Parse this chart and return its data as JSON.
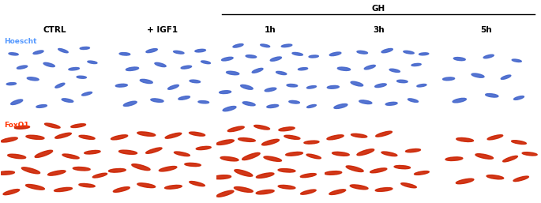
{
  "columns": [
    "CTRL",
    "+ IGF1",
    "1h",
    "3h",
    "5h"
  ],
  "gh_label": "GH",
  "gh_cols": [
    2,
    3,
    4
  ],
  "row_labels": [
    "Hoescht",
    "FoxO1"
  ],
  "row_label_colors": [
    "#5599ff",
    "#ff3300"
  ],
  "bg_color": "#000000",
  "outer_bg": "#ffffff",
  "header_fontsize": 7.5,
  "blue_cells": {
    "0": [
      [
        0.15,
        0.2,
        0.12,
        0.04,
        25
      ],
      [
        0.38,
        0.15,
        0.1,
        0.032,
        10
      ],
      [
        0.62,
        0.22,
        0.11,
        0.035,
        -15
      ],
      [
        0.8,
        0.3,
        0.1,
        0.03,
        20
      ],
      [
        0.1,
        0.42,
        0.09,
        0.028,
        5
      ],
      [
        0.3,
        0.48,
        0.11,
        0.035,
        -10
      ],
      [
        0.55,
        0.4,
        0.1,
        0.032,
        30
      ],
      [
        0.75,
        0.5,
        0.09,
        0.028,
        -5
      ],
      [
        0.2,
        0.62,
        0.1,
        0.032,
        15
      ],
      [
        0.45,
        0.65,
        0.11,
        0.036,
        -20
      ],
      [
        0.68,
        0.6,
        0.1,
        0.03,
        8
      ],
      [
        0.85,
        0.68,
        0.09,
        0.028,
        -12
      ],
      [
        0.12,
        0.78,
        0.09,
        0.028,
        -8
      ],
      [
        0.35,
        0.8,
        0.1,
        0.032,
        18
      ],
      [
        0.58,
        0.82,
        0.1,
        0.03,
        -25
      ],
      [
        0.78,
        0.85,
        0.09,
        0.028,
        5
      ]
    ],
    "1": [
      [
        0.2,
        0.18,
        0.13,
        0.042,
        20
      ],
      [
        0.45,
        0.22,
        0.12,
        0.038,
        -10
      ],
      [
        0.7,
        0.25,
        0.11,
        0.035,
        15
      ],
      [
        0.88,
        0.2,
        0.1,
        0.03,
        -5
      ],
      [
        0.12,
        0.4,
        0.11,
        0.035,
        5
      ],
      [
        0.35,
        0.45,
        0.12,
        0.04,
        -15
      ],
      [
        0.6,
        0.38,
        0.11,
        0.035,
        25
      ],
      [
        0.8,
        0.45,
        0.1,
        0.032,
        -8
      ],
      [
        0.22,
        0.6,
        0.12,
        0.038,
        10
      ],
      [
        0.48,
        0.65,
        0.11,
        0.036,
        -20
      ],
      [
        0.72,
        0.62,
        0.1,
        0.032,
        12
      ],
      [
        0.9,
        0.68,
        0.09,
        0.028,
        -15
      ],
      [
        0.15,
        0.78,
        0.1,
        0.032,
        -5
      ],
      [
        0.4,
        0.82,
        0.11,
        0.035,
        18
      ],
      [
        0.65,
        0.8,
        0.1,
        0.03,
        -12
      ],
      [
        0.85,
        0.82,
        0.1,
        0.032,
        8
      ]
    ],
    "2": [
      [
        0.12,
        0.12,
        0.13,
        0.042,
        20
      ],
      [
        0.3,
        0.18,
        0.12,
        0.038,
        -15
      ],
      [
        0.52,
        0.15,
        0.11,
        0.035,
        10
      ],
      [
        0.72,
        0.2,
        0.1,
        0.032,
        -8
      ],
      [
        0.88,
        0.15,
        0.09,
        0.028,
        18
      ],
      [
        0.08,
        0.32,
        0.11,
        0.035,
        5
      ],
      [
        0.28,
        0.38,
        0.12,
        0.04,
        -20
      ],
      [
        0.5,
        0.35,
        0.11,
        0.036,
        15
      ],
      [
        0.7,
        0.4,
        0.1,
        0.032,
        -5
      ],
      [
        0.88,
        0.38,
        0.09,
        0.028,
        12
      ],
      [
        0.15,
        0.55,
        0.12,
        0.038,
        -10
      ],
      [
        0.38,
        0.58,
        0.11,
        0.035,
        25
      ],
      [
        0.6,
        0.55,
        0.1,
        0.032,
        -15
      ],
      [
        0.8,
        0.6,
        0.09,
        0.028,
        8
      ],
      [
        0.1,
        0.72,
        0.11,
        0.035,
        15
      ],
      [
        0.32,
        0.75,
        0.1,
        0.032,
        -8
      ],
      [
        0.55,
        0.72,
        0.11,
        0.036,
        20
      ],
      [
        0.75,
        0.78,
        0.1,
        0.03,
        -12
      ],
      [
        0.9,
        0.75,
        0.09,
        0.028,
        5
      ],
      [
        0.2,
        0.88,
        0.1,
        0.032,
        18
      ],
      [
        0.45,
        0.88,
        0.09,
        0.028,
        -15
      ],
      [
        0.65,
        0.88,
        0.1,
        0.03,
        10
      ]
    ],
    "3": [
      [
        0.15,
        0.15,
        0.13,
        0.042,
        18
      ],
      [
        0.38,
        0.2,
        0.12,
        0.038,
        -12
      ],
      [
        0.62,
        0.18,
        0.11,
        0.035,
        8
      ],
      [
        0.82,
        0.22,
        0.1,
        0.032,
        -18
      ],
      [
        0.08,
        0.38,
        0.11,
        0.035,
        5
      ],
      [
        0.3,
        0.42,
        0.12,
        0.04,
        -20
      ],
      [
        0.52,
        0.4,
        0.11,
        0.036,
        15
      ],
      [
        0.72,
        0.45,
        0.1,
        0.032,
        -5
      ],
      [
        0.9,
        0.4,
        0.09,
        0.028,
        12
      ],
      [
        0.18,
        0.6,
        0.12,
        0.038,
        -8
      ],
      [
        0.42,
        0.62,
        0.11,
        0.035,
        22
      ],
      [
        0.65,
        0.58,
        0.1,
        0.032,
        -15
      ],
      [
        0.85,
        0.65,
        0.09,
        0.028,
        8
      ],
      [
        0.1,
        0.78,
        0.11,
        0.035,
        15
      ],
      [
        0.35,
        0.8,
        0.1,
        0.032,
        -10
      ],
      [
        0.58,
        0.82,
        0.11,
        0.036,
        20
      ],
      [
        0.78,
        0.8,
        0.1,
        0.03,
        -12
      ],
      [
        0.92,
        0.78,
        0.09,
        0.028,
        5
      ]
    ],
    "4": [
      [
        0.25,
        0.22,
        0.13,
        0.042,
        15
      ],
      [
        0.55,
        0.28,
        0.12,
        0.038,
        -10
      ],
      [
        0.8,
        0.25,
        0.1,
        0.032,
        20
      ],
      [
        0.15,
        0.48,
        0.11,
        0.035,
        5
      ],
      [
        0.42,
        0.52,
        0.12,
        0.04,
        -15
      ],
      [
        0.68,
        0.5,
        0.1,
        0.032,
        25
      ],
      [
        0.25,
        0.72,
        0.11,
        0.036,
        -8
      ],
      [
        0.52,
        0.75,
        0.1,
        0.032,
        18
      ],
      [
        0.78,
        0.7,
        0.09,
        0.028,
        -12
      ]
    ]
  },
  "red_cells": {
    "0": [
      [
        0.1,
        0.12,
        0.16,
        0.042,
        20
      ],
      [
        0.32,
        0.18,
        0.18,
        0.045,
        -15
      ],
      [
        0.58,
        0.15,
        0.17,
        0.04,
        10
      ],
      [
        0.8,
        0.2,
        0.15,
        0.038,
        -8
      ],
      [
        0.05,
        0.35,
        0.16,
        0.042,
        5
      ],
      [
        0.28,
        0.38,
        0.18,
        0.048,
        -20
      ],
      [
        0.52,
        0.35,
        0.17,
        0.044,
        15
      ],
      [
        0.75,
        0.4,
        0.16,
        0.04,
        -5
      ],
      [
        0.92,
        0.32,
        0.14,
        0.036,
        18
      ],
      [
        0.15,
        0.55,
        0.17,
        0.045,
        -10
      ],
      [
        0.4,
        0.58,
        0.18,
        0.048,
        25
      ],
      [
        0.65,
        0.55,
        0.16,
        0.04,
        -15
      ],
      [
        0.85,
        0.6,
        0.15,
        0.038,
        8
      ],
      [
        0.08,
        0.75,
        0.16,
        0.042,
        15
      ],
      [
        0.32,
        0.78,
        0.17,
        0.044,
        -8
      ],
      [
        0.58,
        0.8,
        0.16,
        0.04,
        20
      ],
      [
        0.8,
        0.78,
        0.15,
        0.038,
        -12
      ],
      [
        0.2,
        0.9,
        0.14,
        0.036,
        5
      ],
      [
        0.48,
        0.92,
        0.15,
        0.038,
        -18
      ],
      [
        0.72,
        0.92,
        0.14,
        0.036,
        12
      ]
    ],
    "1": [
      [
        0.12,
        0.15,
        0.16,
        0.042,
        18
      ],
      [
        0.35,
        0.2,
        0.17,
        0.044,
        -12
      ],
      [
        0.6,
        0.18,
        0.16,
        0.04,
        8
      ],
      [
        0.82,
        0.22,
        0.15,
        0.038,
        -18
      ],
      [
        0.08,
        0.38,
        0.16,
        0.042,
        5
      ],
      [
        0.3,
        0.42,
        0.18,
        0.048,
        -20
      ],
      [
        0.55,
        0.4,
        0.17,
        0.044,
        15
      ],
      [
        0.78,
        0.45,
        0.15,
        0.038,
        -5
      ],
      [
        0.18,
        0.6,
        0.17,
        0.044,
        -8
      ],
      [
        0.42,
        0.62,
        0.16,
        0.04,
        22
      ],
      [
        0.68,
        0.58,
        0.15,
        0.038,
        -15
      ],
      [
        0.88,
        0.65,
        0.14,
        0.036,
        8
      ],
      [
        0.1,
        0.78,
        0.16,
        0.042,
        15
      ],
      [
        0.35,
        0.82,
        0.17,
        0.044,
        -10
      ],
      [
        0.6,
        0.8,
        0.16,
        0.04,
        20
      ],
      [
        0.82,
        0.82,
        0.15,
        0.038,
        -12
      ]
    ],
    "2": [
      [
        0.08,
        0.1,
        0.17,
        0.046,
        22
      ],
      [
        0.25,
        0.15,
        0.18,
        0.048,
        -15
      ],
      [
        0.45,
        0.12,
        0.17,
        0.044,
        10
      ],
      [
        0.65,
        0.18,
        0.16,
        0.04,
        -8
      ],
      [
        0.85,
        0.12,
        0.15,
        0.038,
        18
      ],
      [
        0.05,
        0.3,
        0.17,
        0.046,
        5
      ],
      [
        0.25,
        0.35,
        0.18,
        0.05,
        -22
      ],
      [
        0.45,
        0.32,
        0.17,
        0.046,
        15
      ],
      [
        0.65,
        0.38,
        0.16,
        0.04,
        -5
      ],
      [
        0.85,
        0.32,
        0.15,
        0.038,
        12
      ],
      [
        0.12,
        0.52,
        0.17,
        0.044,
        -10
      ],
      [
        0.32,
        0.55,
        0.18,
        0.048,
        25
      ],
      [
        0.52,
        0.52,
        0.17,
        0.044,
        -15
      ],
      [
        0.72,
        0.58,
        0.16,
        0.04,
        8
      ],
      [
        0.9,
        0.55,
        0.14,
        0.036,
        -18
      ],
      [
        0.08,
        0.72,
        0.17,
        0.046,
        15
      ],
      [
        0.28,
        0.75,
        0.16,
        0.04,
        -8
      ],
      [
        0.5,
        0.72,
        0.17,
        0.046,
        20
      ],
      [
        0.7,
        0.78,
        0.15,
        0.038,
        -12
      ],
      [
        0.88,
        0.72,
        0.14,
        0.036,
        5
      ],
      [
        0.18,
        0.88,
        0.16,
        0.042,
        18
      ],
      [
        0.42,
        0.9,
        0.15,
        0.038,
        -15
      ],
      [
        0.65,
        0.88,
        0.15,
        0.04,
        10
      ]
    ],
    "3": [
      [
        0.12,
        0.12,
        0.16,
        0.042,
        18
      ],
      [
        0.32,
        0.18,
        0.17,
        0.044,
        -12
      ],
      [
        0.55,
        0.15,
        0.16,
        0.04,
        8
      ],
      [
        0.78,
        0.2,
        0.15,
        0.038,
        -18
      ],
      [
        0.08,
        0.35,
        0.16,
        0.042,
        5
      ],
      [
        0.28,
        0.4,
        0.17,
        0.046,
        -20
      ],
      [
        0.5,
        0.38,
        0.16,
        0.04,
        15
      ],
      [
        0.72,
        0.42,
        0.15,
        0.038,
        -5
      ],
      [
        0.9,
        0.35,
        0.14,
        0.036,
        12
      ],
      [
        0.15,
        0.58,
        0.16,
        0.042,
        -8
      ],
      [
        0.38,
        0.6,
        0.17,
        0.046,
        22
      ],
      [
        0.6,
        0.58,
        0.15,
        0.038,
        -15
      ],
      [
        0.82,
        0.62,
        0.14,
        0.036,
        8
      ],
      [
        0.1,
        0.78,
        0.16,
        0.042,
        15
      ],
      [
        0.32,
        0.8,
        0.15,
        0.038,
        -10
      ],
      [
        0.55,
        0.82,
        0.16,
        0.04,
        20
      ]
    ],
    "4": [
      [
        0.3,
        0.25,
        0.17,
        0.046,
        15
      ],
      [
        0.58,
        0.3,
        0.16,
        0.042,
        -10
      ],
      [
        0.82,
        0.28,
        0.15,
        0.038,
        20
      ],
      [
        0.2,
        0.52,
        0.16,
        0.042,
        5
      ],
      [
        0.48,
        0.55,
        0.17,
        0.046,
        -15
      ],
      [
        0.72,
        0.52,
        0.15,
        0.038,
        25
      ],
      [
        0.9,
        0.58,
        0.14,
        0.036,
        -8
      ],
      [
        0.3,
        0.75,
        0.16,
        0.042,
        -8
      ],
      [
        0.58,
        0.78,
        0.15,
        0.038,
        18
      ],
      [
        0.8,
        0.72,
        0.14,
        0.036,
        -12
      ]
    ]
  }
}
